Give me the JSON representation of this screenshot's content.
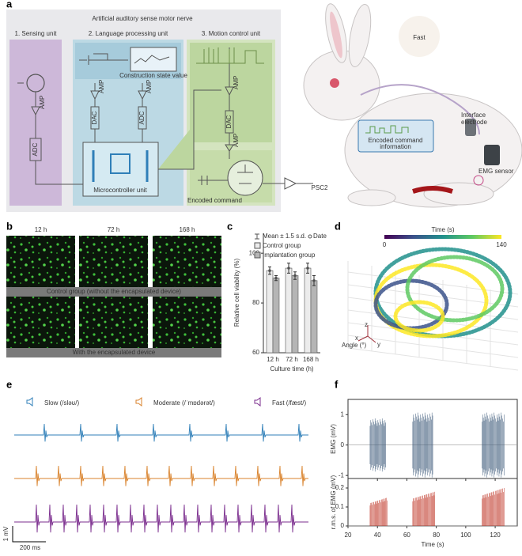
{
  "panel_labels": [
    "a",
    "b",
    "c",
    "d",
    "e",
    "f"
  ],
  "panel_a": {
    "title": "Artificial auditory sense motor nerve",
    "units": [
      "1. Sensing unit",
      "2. Language processing unit",
      "3. Motion control unit"
    ],
    "amp": "AMP",
    "adc": "ADC",
    "dac": "DAC",
    "construction": "Construction state value",
    "mcu": "Microcontroller unit",
    "encoded": "Encoded command",
    "psc": "PSC2",
    "fast": "Fast",
    "info": [
      "Encoded command",
      "information"
    ],
    "electrode": [
      "Interface",
      "electrode"
    ],
    "emg": "EMG sensor"
  },
  "panel_b": {
    "times": [
      "12 h",
      "72 h",
      "168 h"
    ],
    "rows": [
      "Control group (without the encapsulated device)",
      "With the encapsulated device"
    ]
  },
  "panel_e": {
    "words": [
      "Slow (/sləʊ/)",
      "Moderate (/ˈmɒdərət/)",
      "Fast (/fæst/)"
    ],
    "colors": [
      "#2f7fb8",
      "#d9822b",
      "#7b2d8e"
    ],
    "scale_y": "1 mV",
    "scale_x": "200 ms"
  },
  "chart_data": [
    {
      "type": "bar",
      "categories": [
        "12 h",
        "72 h",
        "168 h"
      ],
      "series": [
        {
          "name": "Control group",
          "color": "#ececec",
          "values": [
            93,
            94,
            94
          ],
          "errors": [
            1.5,
            2,
            2
          ]
        },
        {
          "name": "Implantation group",
          "color": "#b5b5b5",
          "values": [
            90,
            91,
            89
          ],
          "errors": [
            1,
            1.5,
            2
          ]
        }
      ],
      "legend": [
        "Mean ± 1.5 s.d.",
        "Date"
      ],
      "ylabel": "Relative cell viability (%)",
      "xlabel": "Culture time (h)",
      "ylim": [
        60,
        108
      ],
      "yticks": [
        60,
        80,
        100
      ]
    },
    {
      "type": "scatter3d",
      "colorbar": {
        "label": "Time (s)",
        "clim": [
          0,
          140
        ],
        "ticks": [
          0,
          140
        ],
        "colors": [
          "#440154",
          "#3b528b",
          "#21918c",
          "#5ec962",
          "#fde725"
        ]
      },
      "axes": [
        "z",
        "x",
        "y"
      ],
      "zlabel": "Angle (°)"
    },
    {
      "type": "line",
      "ylabel": "EMG (mV)",
      "ylim": [
        -1.1,
        1.5
      ],
      "yticks": [
        -1,
        0,
        1
      ],
      "xlim": [
        20,
        135
      ],
      "xticks": [
        20,
        40,
        60,
        80,
        100,
        120
      ],
      "color": "#3d5a7a",
      "bursts": [
        {
          "start": 35,
          "end": 46,
          "amplitude": 0.9
        },
        {
          "start": 64,
          "end": 78,
          "amplitude": 1.1
        },
        {
          "start": 111,
          "end": 126,
          "amplitude": 1.1
        }
      ]
    },
    {
      "type": "line",
      "ylabel": "r.m.s. of EMG (mV)",
      "xlabel": "Time (s)",
      "ylim": [
        0,
        0.25
      ],
      "yticks": [
        0,
        0.1,
        0.2
      ],
      "xlim": [
        20,
        135
      ],
      "xticks": [
        20,
        40,
        60,
        80,
        100,
        120
      ],
      "color": "#c0392b",
      "bursts": [
        {
          "start": 35,
          "end": 47,
          "amplitude": 0.15
        },
        {
          "start": 64,
          "end": 79,
          "amplitude": 0.18
        },
        {
          "start": 111,
          "end": 126,
          "amplitude": 0.2
        }
      ]
    }
  ]
}
